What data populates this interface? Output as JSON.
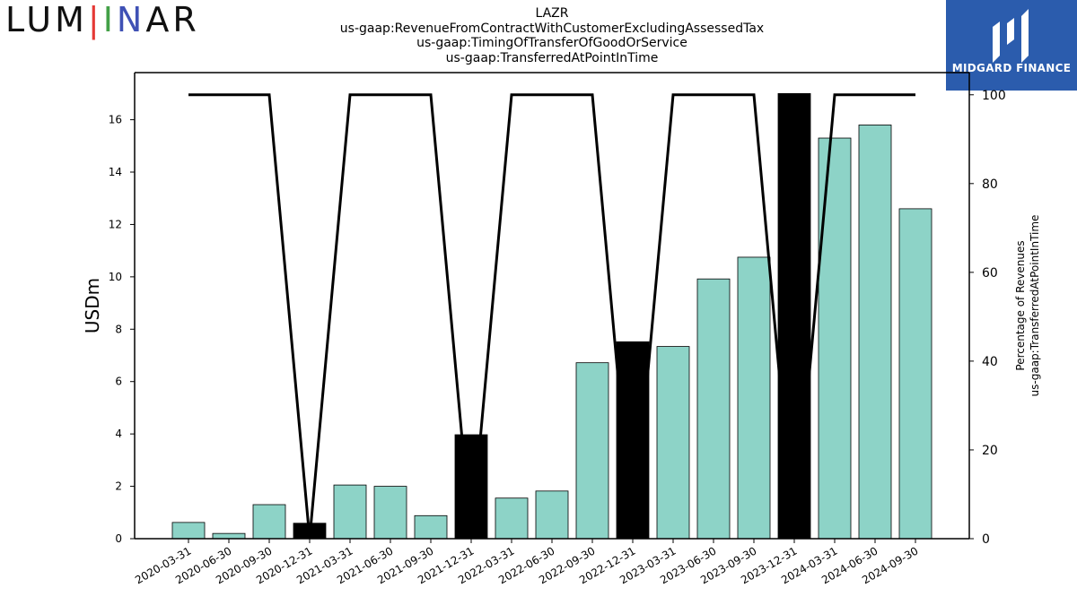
{
  "header": {
    "logo_left": {
      "p1": "LUM",
      "p2": "I",
      "p3": "N",
      "p4": "AR"
    },
    "logo_right_text": "MIDGARD FINANCE",
    "title_lines": [
      "LAZR",
      "us-gaap:RevenueFromContractWithCustomerExcludingAssessedTax",
      "us-gaap:TimingOfTransferOfGoodOrService",
      "us-gaap:TransferredAtPointInTime"
    ]
  },
  "colors": {
    "bar_default": "#8dd3c7",
    "bar_highlight": "#000000",
    "line": "#000000",
    "brand_right": "#2b5cad"
  },
  "chart_data": {
    "type": "bar",
    "categories": [
      "2020-03-31",
      "2020-06-30",
      "2020-09-30",
      "2020-12-31",
      "2021-03-31",
      "2021-06-30",
      "2021-09-30",
      "2021-12-31",
      "2022-03-31",
      "2022-06-30",
      "2022-09-30",
      "2022-12-31",
      "2023-03-31",
      "2023-06-30",
      "2023-09-30",
      "2023-12-31",
      "2024-03-31",
      "2024-06-30",
      "2024-09-30"
    ],
    "values": [
      0.62,
      0.2,
      1.3,
      0.59,
      2.05,
      2.0,
      0.88,
      3.97,
      1.55,
      1.82,
      6.72,
      7.52,
      7.34,
      9.92,
      10.75,
      17.0,
      15.3,
      15.8,
      12.6
    ],
    "highlight": [
      false,
      false,
      false,
      true,
      false,
      false,
      false,
      true,
      false,
      false,
      false,
      true,
      false,
      false,
      false,
      true,
      false,
      false,
      false
    ],
    "ylabel": "USDm",
    "ylim": [
      0,
      17.8
    ],
    "yticks": [
      0,
      2,
      4,
      6,
      8,
      10,
      12,
      14,
      16
    ],
    "secondary": {
      "type": "line",
      "ylabel_lines": [
        "Percentage of Revenues",
        "us-gaap:TransferredAtPointInTime"
      ],
      "ylim": [
        0,
        105
      ],
      "yticks": [
        0,
        20,
        40,
        60,
        80,
        100
      ],
      "values": [
        100,
        100,
        100,
        0,
        100,
        100,
        100,
        0,
        100,
        100,
        100,
        0,
        100,
        100,
        100,
        0,
        100,
        100,
        100
      ]
    }
  }
}
